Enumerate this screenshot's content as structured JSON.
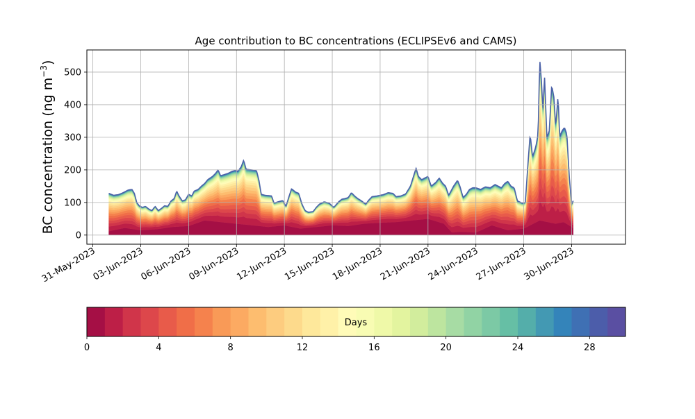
{
  "chart_data": {
    "type": "area",
    "stacked": true,
    "title": "Age contribution to BC concentrations (ECLIPSEv6 and CAMS)",
    "ylabel_main": "BC concentration (ng m",
    "ylabel_sup": "−3",
    "ylabel_close": ")",
    "xlabel": "",
    "grid": true,
    "x_axis": {
      "ticks": [
        "31-May-2023",
        "03-Jun-2023",
        "06-Jun-2023",
        "09-Jun-2023",
        "12-Jun-2023",
        "15-Jun-2023",
        "18-Jun-2023",
        "21-Jun-2023",
        "24-Jun-2023",
        "27-Jun-2023",
        "30-Jun-2023"
      ],
      "range": [
        "2023-05-30T15:00",
        "2023-07-03T09:00"
      ],
      "data_range": [
        "2023-06-01",
        "2023-07-01T00:00"
      ]
    },
    "y_axis": {
      "range": [
        -28,
        568
      ],
      "ticks": [
        0,
        100,
        200,
        300,
        400,
        500
      ],
      "tick_labels": [
        "0",
        "100",
        "200",
        "300",
        "400",
        "500"
      ]
    },
    "total_series_keypoints_days_since_start": [
      [
        0,
        128
      ],
      [
        0.3,
        122
      ],
      [
        0.6,
        124
      ],
      [
        0.9,
        130
      ],
      [
        1.2,
        138
      ],
      [
        1.45,
        140
      ],
      [
        1.6,
        128
      ],
      [
        1.75,
        100
      ],
      [
        1.9,
        90
      ],
      [
        2.1,
        85
      ],
      [
        2.3,
        88
      ],
      [
        2.5,
        80
      ],
      [
        2.7,
        75
      ],
      [
        2.9,
        88
      ],
      [
        3.1,
        75
      ],
      [
        3.3,
        82
      ],
      [
        3.5,
        90
      ],
      [
        3.7,
        88
      ],
      [
        3.9,
        105
      ],
      [
        4.1,
        112
      ],
      [
        4.25,
        135
      ],
      [
        4.4,
        120
      ],
      [
        4.6,
        105
      ],
      [
        4.8,
        108
      ],
      [
        5.0,
        125
      ],
      [
        5.2,
        120
      ],
      [
        5.35,
        135
      ],
      [
        5.6,
        140
      ],
      [
        5.8,
        150
      ],
      [
        6.0,
        158
      ],
      [
        6.2,
        170
      ],
      [
        6.5,
        180
      ],
      [
        6.7,
        190
      ],
      [
        6.85,
        200
      ],
      [
        7.0,
        182
      ],
      [
        7.2,
        185
      ],
      [
        7.5,
        190
      ],
      [
        7.7,
        195
      ],
      [
        7.9,
        198
      ],
      [
        8.1,
        196
      ],
      [
        8.3,
        210
      ],
      [
        8.45,
        230
      ],
      [
        8.6,
        202
      ],
      [
        8.9,
        200
      ],
      [
        9.25,
        198
      ],
      [
        9.4,
        170
      ],
      [
        9.55,
        125
      ],
      [
        9.8,
        122
      ],
      [
        10.2,
        120
      ],
      [
        10.35,
        98
      ],
      [
        10.6,
        102
      ],
      [
        10.9,
        106
      ],
      [
        11.1,
        88
      ],
      [
        11.3,
        120
      ],
      [
        11.45,
        142
      ],
      [
        11.7,
        132
      ],
      [
        11.9,
        128
      ],
      [
        12.1,
        95
      ],
      [
        12.3,
        75
      ],
      [
        12.5,
        70
      ],
      [
        12.8,
        72
      ],
      [
        13.0,
        85
      ],
      [
        13.2,
        95
      ],
      [
        13.5,
        102
      ],
      [
        13.8,
        98
      ],
      [
        14.1,
        85
      ],
      [
        14.4,
        102
      ],
      [
        14.6,
        110
      ],
      [
        14.8,
        112
      ],
      [
        15.0,
        115
      ],
      [
        15.2,
        130
      ],
      [
        15.4,
        120
      ],
      [
        15.6,
        112
      ],
      [
        15.8,
        106
      ],
      [
        16.1,
        95
      ],
      [
        16.3,
        108
      ],
      [
        16.5,
        118
      ],
      [
        16.8,
        120
      ],
      [
        17.2,
        124
      ],
      [
        17.5,
        130
      ],
      [
        17.8,
        128
      ],
      [
        18.0,
        118
      ],
      [
        18.3,
        120
      ],
      [
        18.6,
        126
      ],
      [
        18.9,
        150
      ],
      [
        19.1,
        182
      ],
      [
        19.25,
        205
      ],
      [
        19.4,
        180
      ],
      [
        19.6,
        170
      ],
      [
        19.8,
        175
      ],
      [
        20.0,
        180
      ],
      [
        20.2,
        150
      ],
      [
        20.5,
        162
      ],
      [
        20.7,
        175
      ],
      [
        20.9,
        160
      ],
      [
        21.1,
        150
      ],
      [
        21.3,
        122
      ],
      [
        21.6,
        150
      ],
      [
        21.85,
        168
      ],
      [
        22.0,
        150
      ],
      [
        22.2,
        115
      ],
      [
        22.4,
        125
      ],
      [
        22.6,
        140
      ],
      [
        22.8,
        145
      ],
      [
        23.0,
        145
      ],
      [
        23.3,
        140
      ],
      [
        23.6,
        148
      ],
      [
        23.9,
        145
      ],
      [
        24.2,
        155
      ],
      [
        24.4,
        150
      ],
      [
        24.6,
        145
      ],
      [
        24.8,
        158
      ],
      [
        25.0,
        165
      ],
      [
        25.2,
        150
      ],
      [
        25.4,
        145
      ],
      [
        25.6,
        105
      ],
      [
        25.9,
        98
      ],
      [
        26.1,
        100
      ],
      [
        26.25,
        210
      ],
      [
        26.4,
        310
      ],
      [
        26.55,
        240
      ],
      [
        26.75,
        270
      ],
      [
        26.9,
        310
      ],
      [
        27.0,
        540
      ],
      [
        27.1,
        480
      ],
      [
        27.2,
        380
      ],
      [
        27.3,
        490
      ],
      [
        27.45,
        300
      ],
      [
        27.6,
        320
      ],
      [
        27.75,
        460
      ],
      [
        27.9,
        420
      ],
      [
        28.0,
        330
      ],
      [
        28.15,
        430
      ],
      [
        28.25,
        300
      ],
      [
        28.4,
        320
      ],
      [
        28.55,
        330
      ],
      [
        28.7,
        310
      ],
      [
        28.85,
        180
      ],
      [
        29.0,
        95
      ],
      [
        29.1,
        105
      ]
    ],
    "bottom_layer_keypoints_days_since_start": [
      [
        0,
        12
      ],
      [
        1,
        22
      ],
      [
        2,
        15
      ],
      [
        3,
        18
      ],
      [
        4,
        25
      ],
      [
        5,
        28
      ],
      [
        6,
        45
      ],
      [
        7,
        40
      ],
      [
        8,
        35
      ],
      [
        9,
        30
      ],
      [
        10,
        25
      ],
      [
        11,
        30
      ],
      [
        12,
        20
      ],
      [
        13,
        25
      ],
      [
        14,
        30
      ],
      [
        15,
        28
      ],
      [
        16,
        35
      ],
      [
        17,
        38
      ],
      [
        18,
        40
      ],
      [
        19,
        45
      ],
      [
        20,
        50
      ],
      [
        21,
        35
      ],
      [
        21.5,
        8
      ],
      [
        22,
        10
      ],
      [
        23,
        8
      ],
      [
        24,
        30
      ],
      [
        25,
        15
      ],
      [
        26,
        20
      ],
      [
        27,
        45
      ],
      [
        28,
        35
      ],
      [
        28.5,
        40
      ],
      [
        29,
        25
      ],
      [
        29.1,
        20
      ]
    ],
    "band_shares_of_gap": [
      0.12,
      0.08,
      0.07,
      0.07,
      0.06,
      0.06,
      0.05,
      0.05,
      0.05,
      0.05,
      0.045,
      0.04,
      0.035,
      0.03,
      0.025,
      0.02,
      0.018,
      0.016,
      0.014,
      0.012,
      0.01,
      0.009,
      0.008,
      0.007,
      0.006,
      0.005,
      0.004,
      0.0035,
      0.003
    ],
    "colorbar": {
      "label": "Days",
      "range": [
        0,
        30
      ],
      "ticks": [
        0,
        4,
        8,
        12,
        16,
        20,
        24,
        28
      ],
      "tick_labels": [
        "0",
        "4",
        "8",
        "12",
        "16",
        "20",
        "24",
        "28"
      ],
      "colors": [
        "#a50f45",
        "#bd1f47",
        "#d0354a",
        "#dd474b",
        "#e85b4a",
        "#f06e48",
        "#f5824d",
        "#f99a57",
        "#fcaa62",
        "#fdbd6f",
        "#fdcc7f",
        "#fdda8c",
        "#fee89b",
        "#fff1a8",
        "#fffbb8",
        "#f8fcb3",
        "#eff9a8",
        "#e3f49f",
        "#d2ed9d",
        "#bde59f",
        "#a7dca4",
        "#91d3a4",
        "#7cc9a5",
        "#66bfa5",
        "#54aeaa",
        "#4399b3",
        "#3484ba",
        "#3f70b4",
        "#4c5daa",
        "#5a4fa2"
      ]
    }
  }
}
